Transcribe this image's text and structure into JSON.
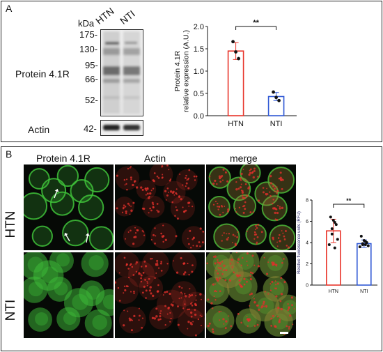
{
  "panel_a": {
    "label": "A",
    "kda_label": "kDa",
    "lanes": [
      "HTN",
      "NTI"
    ],
    "markers": [
      "175-",
      "130-",
      "95-",
      "66-",
      "52-"
    ],
    "actin_marker": "42-",
    "protein_label": "Protein 4.1R",
    "actin_label": "Actin"
  },
  "panel_b": {
    "label": "B",
    "column_titles": [
      "Protein 4.1R",
      "Actin",
      "merge"
    ],
    "row_labels": [
      "HTN",
      "NTI"
    ],
    "colors": {
      "green": "#3fc23a",
      "red": "#e0302a"
    }
  },
  "chart_data": [
    {
      "type": "bar",
      "categories": [
        "HTN",
        "NTI"
      ],
      "values": [
        1.45,
        0.43
      ],
      "points": [
        [
          1.66,
          1.43,
          1.28
        ],
        [
          0.53,
          0.41,
          0.34
        ]
      ],
      "error": [
        0.19,
        0.09
      ],
      "ylabel_lines": [
        "Protein 4.1R",
        "relative expression (A.U.)"
      ],
      "ylim": [
        0,
        2.0
      ],
      "yticks": [
        "0.0",
        "0.5",
        "1.0",
        "1.5",
        "2.0"
      ],
      "significance": "**",
      "colors": [
        "#e8342a",
        "#2f58d4"
      ]
    },
    {
      "type": "bar",
      "categories": [
        "HTN",
        "NTI"
      ],
      "values": [
        5.1,
        3.9
      ],
      "points": [
        [
          6.4,
          6.1,
          5.7,
          5.3,
          4.8,
          4.3,
          3.8,
          3.5,
          5.9
        ],
        [
          4.6,
          4.2,
          4.0,
          3.9,
          3.8,
          3.7,
          3.6,
          3.8,
          4.1
        ]
      ],
      "error": [
        1.1,
        0.35
      ],
      "ylabel": "Relative fluorescence units (RFU)",
      "ylim": [
        0,
        8
      ],
      "yticks": [
        "0",
        "2",
        "4",
        "6",
        "8"
      ],
      "significance": "**",
      "colors": [
        "#e8342a",
        "#2f58d4"
      ]
    }
  ]
}
